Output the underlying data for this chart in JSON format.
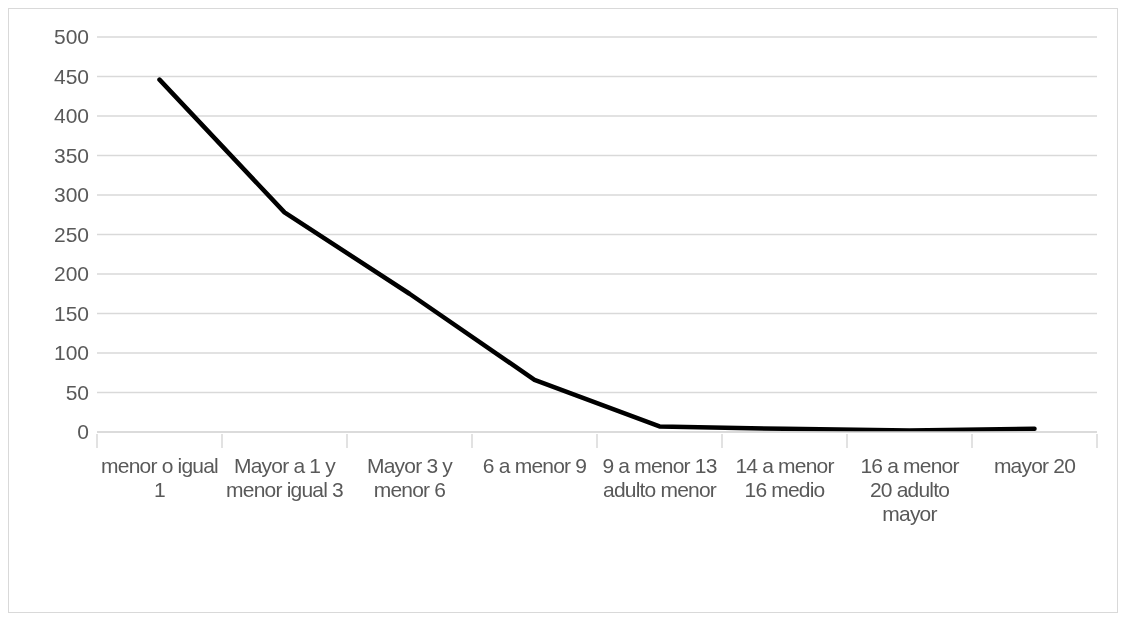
{
  "chart_data": {
    "type": "line",
    "categories": [
      "menor o igual 1",
      "Mayor a 1 y menor igual 3",
      "Mayor 3 y menor 6",
      "6 a menor 9",
      "9 a menor 13 adulto menor",
      "14 a menor 16 medio",
      "16 a menor 20 adulto mayor",
      "mayor 20"
    ],
    "series": [
      {
        "color": "#000000",
        "values": [
          446,
          278,
          175,
          66,
          7,
          4,
          2,
          4
        ]
      }
    ],
    "ylim": [
      0,
      500
    ],
    "yticks": [
      0,
      50,
      100,
      150,
      200,
      250,
      300,
      350,
      400,
      450,
      500
    ],
    "grid": "y",
    "legend": false,
    "marker": "none",
    "line_style": "solid"
  }
}
